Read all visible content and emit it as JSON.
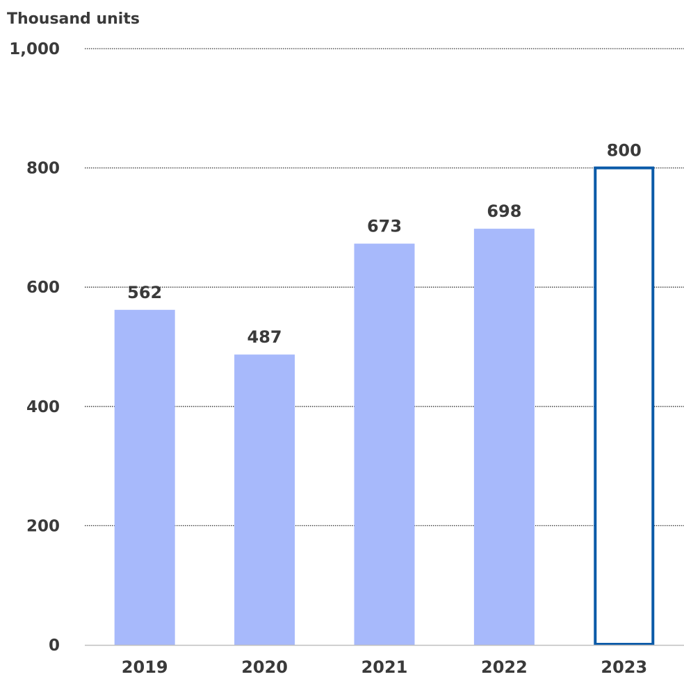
{
  "chart_data": {
    "type": "bar",
    "ylabel": "Thousand units",
    "categories": [
      "2019",
      "2020",
      "2021",
      "2022",
      "2023"
    ],
    "values": [
      562,
      487,
      673,
      698,
      800
    ],
    "data_labels": [
      "562",
      "487",
      "673",
      "698",
      "800"
    ],
    "ylim": [
      0,
      1000
    ],
    "y_ticks": [
      0,
      200,
      400,
      600,
      800,
      1000
    ],
    "y_tick_labels": [
      "0",
      "200",
      "400",
      "600",
      "800",
      "1,000"
    ],
    "grid": true,
    "grid_style": "dotted",
    "legend": "none",
    "colors": {
      "bar_fill": "#a7b9fb",
      "outlined_bar_stroke": "#0a5aa8",
      "text": "#3a3a3a",
      "grid": "#333333",
      "axis": "#bfbfbf"
    },
    "outlined_categories": [
      "2023"
    ]
  }
}
